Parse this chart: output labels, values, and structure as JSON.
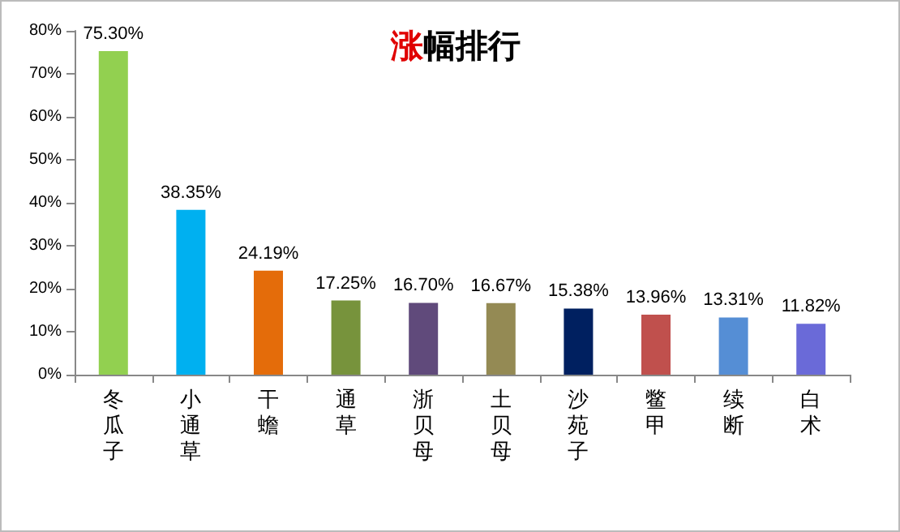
{
  "chart_data": {
    "type": "bar",
    "title": "涨幅排行",
    "categories": [
      "冬瓜子",
      "小通草",
      "干蟾",
      "通草",
      "浙贝母",
      "土贝母",
      "沙苑子",
      "鳖甲",
      "续断",
      "白术"
    ],
    "values": [
      75.3,
      38.35,
      24.19,
      17.25,
      16.7,
      16.67,
      15.38,
      13.96,
      13.31,
      11.82
    ],
    "colors": [
      "#92d050",
      "#00b0f0",
      "#e46c0a",
      "#77933c",
      "#604a7b",
      "#948a54",
      "#002060",
      "#c0504d",
      "#558ed5",
      "#6a6ad8"
    ],
    "value_labels": [
      "75.30%",
      "38.35%",
      "24.19%",
      "17.25%",
      "16.70%",
      "16.67%",
      "15.38%",
      "13.96%",
      "13.31%",
      "11.82%"
    ],
    "ylim": [
      0,
      80
    ],
    "yticks": [
      {
        "value": 0,
        "label": "0%"
      },
      {
        "value": 10,
        "label": "10%"
      },
      {
        "value": 20,
        "label": "20%"
      },
      {
        "value": 30,
        "label": "30%"
      },
      {
        "value": 40,
        "label": "40%"
      },
      {
        "value": 50,
        "label": "50%"
      },
      {
        "value": 60,
        "label": "60%"
      },
      {
        "value": 70,
        "label": "70%"
      },
      {
        "value": 80,
        "label": "80%"
      }
    ],
    "grid": false
  }
}
